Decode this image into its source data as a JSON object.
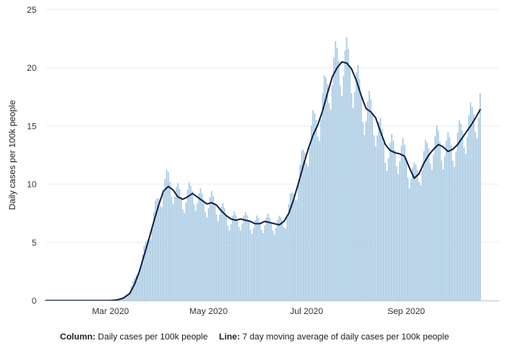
{
  "chart_data": {
    "type": "bar",
    "ylabel": "Daily cases per 100k people",
    "ylim": [
      0,
      25
    ],
    "yticks": [
      0,
      5,
      10,
      15,
      20,
      25
    ],
    "xlim": [
      "2020-01-21",
      "2020-10-29"
    ],
    "xticks": [
      {
        "date": "2020-03-01",
        "label": "Mar 2020"
      },
      {
        "date": "2020-05-01",
        "label": "May 2020"
      },
      {
        "date": "2020-07-01",
        "label": "Jul 2020"
      },
      {
        "date": "2020-09-01",
        "label": "Sep 2020"
      }
    ],
    "bar_color": "#9ec3e0",
    "line_color": "#0d1b3e",
    "series": [
      {
        "name": "Daily cases per 100k people",
        "kind": "column",
        "points": [
          [
            "2020-01-21",
            0
          ],
          [
            "2020-02-15",
            0
          ],
          [
            "2020-03-01",
            0.05
          ],
          [
            "2020-03-05",
            0.1
          ],
          [
            "2020-03-09",
            0.3
          ],
          [
            "2020-03-13",
            0.8
          ],
          [
            "2020-03-16",
            1.8
          ],
          [
            "2020-03-19",
            2.8
          ],
          [
            "2020-03-22",
            4.2
          ],
          [
            "2020-03-25",
            5.6
          ],
          [
            "2020-03-28",
            7.2
          ],
          [
            "2020-03-31",
            8.6
          ],
          [
            "2020-04-03",
            9.7
          ],
          [
            "2020-04-06",
            10.2
          ],
          [
            "2020-04-09",
            9.6
          ],
          [
            "2020-04-12",
            9.0
          ],
          [
            "2020-04-15",
            8.6
          ],
          [
            "2020-04-18",
            9.0
          ],
          [
            "2020-04-21",
            9.2
          ],
          [
            "2020-04-24",
            8.8
          ],
          [
            "2020-04-27",
            8.5
          ],
          [
            "2020-04-30",
            8.3
          ],
          [
            "2020-05-03",
            8.4
          ],
          [
            "2020-05-06",
            8.1
          ],
          [
            "2020-05-09",
            7.6
          ],
          [
            "2020-05-12",
            7.2
          ],
          [
            "2020-05-15",
            6.9
          ],
          [
            "2020-05-18",
            6.8
          ],
          [
            "2020-05-21",
            7.0
          ],
          [
            "2020-05-24",
            6.8
          ],
          [
            "2020-05-27",
            6.7
          ],
          [
            "2020-05-30",
            6.5
          ],
          [
            "2020-06-02",
            6.6
          ],
          [
            "2020-06-05",
            6.8
          ],
          [
            "2020-06-08",
            6.6
          ],
          [
            "2020-06-11",
            6.6
          ],
          [
            "2020-06-14",
            6.5
          ],
          [
            "2020-06-17",
            6.9
          ],
          [
            "2020-06-20",
            7.8
          ],
          [
            "2020-06-23",
            9.0
          ],
          [
            "2020-06-26",
            10.5
          ],
          [
            "2020-06-29",
            12.0
          ],
          [
            "2020-07-02",
            13.4
          ],
          [
            "2020-07-05",
            14.6
          ],
          [
            "2020-07-08",
            15.5
          ],
          [
            "2020-07-11",
            16.8
          ],
          [
            "2020-07-14",
            18.2
          ],
          [
            "2020-07-17",
            19.5
          ],
          [
            "2020-07-20",
            20.1
          ],
          [
            "2020-07-23",
            20.4
          ],
          [
            "2020-07-26",
            20.2
          ],
          [
            "2020-07-29",
            19.6
          ],
          [
            "2020-08-01",
            18.5
          ],
          [
            "2020-08-04",
            17.2
          ],
          [
            "2020-08-07",
            16.2
          ],
          [
            "2020-08-10",
            16.0
          ],
          [
            "2020-08-13",
            15.4
          ],
          [
            "2020-08-16",
            14.0
          ],
          [
            "2020-08-19",
            13.0
          ],
          [
            "2020-08-22",
            12.8
          ],
          [
            "2020-08-25",
            12.7
          ],
          [
            "2020-08-28",
            12.6
          ],
          [
            "2020-08-31",
            12.4
          ],
          [
            "2020-09-03",
            11.2
          ],
          [
            "2020-09-06",
            10.6
          ],
          [
            "2020-09-09",
            11.2
          ],
          [
            "2020-09-12",
            12.1
          ],
          [
            "2020-09-15",
            12.8
          ],
          [
            "2020-09-18",
            13.2
          ],
          [
            "2020-09-21",
            13.5
          ],
          [
            "2020-09-24",
            13.1
          ],
          [
            "2020-09-27",
            12.9
          ],
          [
            "2020-09-30",
            13.2
          ],
          [
            "2020-10-03",
            13.6
          ],
          [
            "2020-10-06",
            14.3
          ],
          [
            "2020-10-09",
            14.8
          ],
          [
            "2020-10-12",
            15.4
          ],
          [
            "2020-10-15",
            16.2
          ],
          [
            "2020-10-17",
            16.8
          ]
        ]
      },
      {
        "name": "7 day moving average of daily cases per 100k people",
        "kind": "line",
        "points": [
          [
            "2020-01-21",
            0
          ],
          [
            "2020-02-15",
            0
          ],
          [
            "2020-03-01",
            0
          ],
          [
            "2020-03-05",
            0.05
          ],
          [
            "2020-03-09",
            0.2
          ],
          [
            "2020-03-13",
            0.6
          ],
          [
            "2020-03-16",
            1.4
          ],
          [
            "2020-03-19",
            2.5
          ],
          [
            "2020-03-22",
            3.9
          ],
          [
            "2020-03-25",
            5.3
          ],
          [
            "2020-03-28",
            6.8
          ],
          [
            "2020-03-31",
            8.2
          ],
          [
            "2020-04-03",
            9.4
          ],
          [
            "2020-04-06",
            9.8
          ],
          [
            "2020-04-09",
            9.5
          ],
          [
            "2020-04-12",
            8.9
          ],
          [
            "2020-04-15",
            8.7
          ],
          [
            "2020-04-18",
            8.9
          ],
          [
            "2020-04-21",
            9.2
          ],
          [
            "2020-04-24",
            8.9
          ],
          [
            "2020-04-27",
            8.6
          ],
          [
            "2020-04-30",
            8.3
          ],
          [
            "2020-05-03",
            8.4
          ],
          [
            "2020-05-06",
            8.2
          ],
          [
            "2020-05-09",
            7.7
          ],
          [
            "2020-05-12",
            7.3
          ],
          [
            "2020-05-15",
            7.0
          ],
          [
            "2020-05-18",
            6.9
          ],
          [
            "2020-05-21",
            7.0
          ],
          [
            "2020-05-24",
            6.9
          ],
          [
            "2020-05-27",
            6.8
          ],
          [
            "2020-05-30",
            6.6
          ],
          [
            "2020-06-02",
            6.6
          ],
          [
            "2020-06-05",
            6.8
          ],
          [
            "2020-06-08",
            6.7
          ],
          [
            "2020-06-11",
            6.6
          ],
          [
            "2020-06-14",
            6.5
          ],
          [
            "2020-06-17",
            6.8
          ],
          [
            "2020-06-20",
            7.5
          ],
          [
            "2020-06-23",
            8.7
          ],
          [
            "2020-06-26",
            10.1
          ],
          [
            "2020-06-29",
            11.6
          ],
          [
            "2020-07-02",
            13.0
          ],
          [
            "2020-07-05",
            14.2
          ],
          [
            "2020-07-08",
            15.1
          ],
          [
            "2020-07-11",
            16.3
          ],
          [
            "2020-07-14",
            17.8
          ],
          [
            "2020-07-17",
            19.2
          ],
          [
            "2020-07-20",
            20.0
          ],
          [
            "2020-07-23",
            20.5
          ],
          [
            "2020-07-26",
            20.4
          ],
          [
            "2020-07-29",
            19.9
          ],
          [
            "2020-08-01",
            18.9
          ],
          [
            "2020-08-04",
            17.6
          ],
          [
            "2020-08-07",
            16.5
          ],
          [
            "2020-08-10",
            16.2
          ],
          [
            "2020-08-13",
            15.7
          ],
          [
            "2020-08-16",
            14.5
          ],
          [
            "2020-08-19",
            13.4
          ],
          [
            "2020-08-22",
            12.9
          ],
          [
            "2020-08-25",
            12.7
          ],
          [
            "2020-08-28",
            12.6
          ],
          [
            "2020-08-31",
            12.4
          ],
          [
            "2020-09-03",
            11.4
          ],
          [
            "2020-09-06",
            10.5
          ],
          [
            "2020-09-09",
            10.9
          ],
          [
            "2020-09-12",
            11.8
          ],
          [
            "2020-09-15",
            12.5
          ],
          [
            "2020-09-18",
            13.0
          ],
          [
            "2020-09-21",
            13.4
          ],
          [
            "2020-09-24",
            13.2
          ],
          [
            "2020-09-27",
            12.8
          ],
          [
            "2020-09-30",
            13.0
          ],
          [
            "2020-10-03",
            13.4
          ],
          [
            "2020-10-06",
            14.0
          ],
          [
            "2020-10-09",
            14.6
          ],
          [
            "2020-10-12",
            15.2
          ],
          [
            "2020-10-15",
            15.9
          ],
          [
            "2020-10-17",
            16.4
          ]
        ]
      }
    ],
    "legend": {
      "placement": "bottom",
      "column_key": "Column:",
      "column_text": "Daily cases per 100k people",
      "line_key": "Line:",
      "line_text": "7 day moving average of daily cases per 100k people"
    }
  }
}
